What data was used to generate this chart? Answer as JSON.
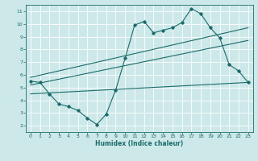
{
  "title": "",
  "xlabel": "Humidex (Indice chaleur)",
  "bg_color": "#cce8e8",
  "grid_color": "#ffffff",
  "line_color": "#1a6b6b",
  "xlim": [
    -0.5,
    23.5
  ],
  "ylim": [
    1.5,
    11.5
  ],
  "xticks": [
    0,
    1,
    2,
    3,
    4,
    5,
    6,
    7,
    8,
    9,
    10,
    11,
    12,
    13,
    14,
    15,
    16,
    17,
    18,
    19,
    20,
    21,
    22,
    23
  ],
  "yticks": [
    2,
    3,
    4,
    5,
    6,
    7,
    8,
    9,
    10,
    11
  ],
  "line1_x": [
    0,
    1,
    2,
    3,
    4,
    5,
    6,
    7,
    8,
    9,
    10,
    11,
    12,
    13,
    14,
    15,
    16,
    17,
    18,
    19,
    20,
    21,
    22,
    23
  ],
  "line1_y": [
    5.5,
    5.4,
    4.5,
    3.7,
    3.5,
    3.2,
    2.6,
    2.1,
    2.9,
    4.8,
    7.3,
    9.9,
    10.2,
    9.3,
    9.5,
    9.7,
    10.1,
    11.2,
    10.8,
    9.7,
    8.9,
    6.8,
    6.3,
    5.4
  ],
  "line2_x": [
    0,
    23
  ],
  "line2_y": [
    5.8,
    9.7
  ],
  "line3_x": [
    0,
    23
  ],
  "line3_y": [
    5.2,
    8.7
  ],
  "line4_x": [
    0,
    23
  ],
  "line4_y": [
    4.5,
    5.4
  ]
}
